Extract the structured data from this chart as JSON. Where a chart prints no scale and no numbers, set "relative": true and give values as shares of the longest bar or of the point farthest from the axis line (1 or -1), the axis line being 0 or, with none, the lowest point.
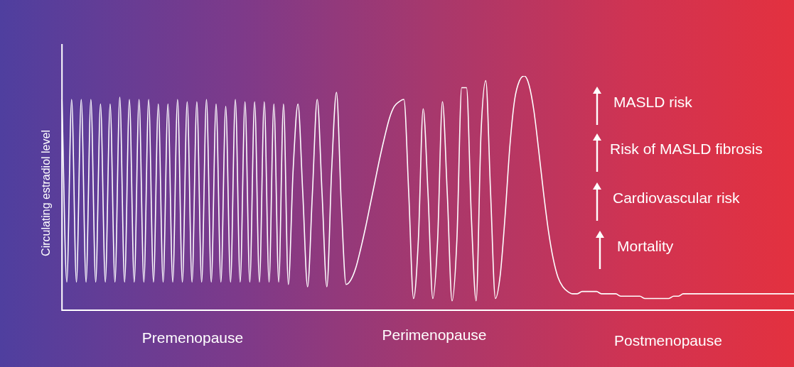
{
  "chart_data": {
    "type": "line",
    "relative": true,
    "ylabel": "Circulating estradiol level",
    "categories": [
      null,
      null,
      null,
      null,
      null,
      null,
      null,
      null,
      null,
      null,
      null,
      null,
      null,
      null,
      null,
      null,
      null,
      null,
      null,
      null,
      null,
      null,
      null,
      null,
      null,
      null,
      null,
      null,
      null,
      null,
      null,
      null,
      null,
      null,
      null,
      null,
      null,
      null,
      null,
      null,
      null,
      null,
      null,
      null,
      null,
      null,
      null,
      null,
      null,
      null,
      null,
      null,
      null,
      null,
      null,
      null,
      null,
      null,
      null,
      null,
      null,
      null,
      null,
      null,
      null,
      null,
      null,
      null,
      null,
      null,
      null,
      null,
      null,
      null,
      null,
      null,
      null,
      null,
      null,
      null,
      null,
      null,
      null,
      null,
      null,
      null,
      null,
      null,
      null,
      null,
      null,
      null,
      null,
      null,
      null,
      null,
      null,
      null,
      null,
      null,
      null,
      null,
      null,
      null,
      null,
      null,
      null,
      null,
      null,
      null,
      null,
      null,
      null,
      null,
      null,
      null,
      null,
      null,
      null,
      null,
      null,
      null,
      null,
      null,
      null,
      null,
      null,
      null,
      null,
      null,
      null,
      null,
      null,
      null,
      null,
      null,
      null,
      null,
      null,
      null,
      null,
      null,
      null,
      null,
      null,
      null,
      null,
      null,
      null,
      null,
      null,
      null,
      null
    ],
    "series": [
      {
        "color": "#ffffff",
        "values": [
          0.9,
          0.12,
          0.9,
          0.12,
          0.9,
          0.12,
          0.9,
          0.12,
          0.88,
          0.12,
          0.88,
          0.12,
          0.91,
          0.12,
          0.9,
          0.12,
          0.9,
          0.12,
          0.9,
          0.12,
          0.88,
          0.12,
          0.88,
          0.12,
          0.9,
          0.12,
          0.89,
          0.12,
          0.89,
          0.12,
          0.9,
          0.12,
          0.88,
          0.12,
          0.87,
          0.12,
          0.9,
          0.12,
          0.89,
          0.12,
          0.89,
          0.12,
          0.89,
          0.12,
          0.88,
          0.12,
          0.88,
          0.11,
          0.6,
          0.88,
          0.5,
          0.1,
          0.5,
          0.9,
          0.5,
          0.1,
          0.6,
          0.93,
          0.45,
          0.11,
          0.13,
          0.18,
          0.26,
          0.35,
          0.45,
          0.55,
          0.65,
          0.74,
          0.82,
          0.87,
          0.89,
          0.9,
          0.5,
          0.05,
          0.3,
          0.86,
          0.5,
          0.05,
          0.3,
          0.89,
          0.5,
          0.04,
          0.3,
          0.95,
          0.95,
          0.4,
          0.04,
          0.75,
          0.98,
          0.5,
          0.05,
          0.15,
          0.4,
          0.7,
          0.9,
          0.98,
          1,
          0.96,
          0.85,
          0.68,
          0.5,
          0.34,
          0.22,
          0.14,
          0.1,
          0.08,
          0.07,
          0.07,
          0.08,
          0.08,
          0.08,
          0.08,
          0.07,
          0.07,
          0.07,
          0.07,
          0.06,
          0.06,
          0.06,
          0.06,
          0.06,
          0.05,
          0.05,
          0.05,
          0.05,
          0.05,
          0.05,
          0.06,
          0.06,
          0.07,
          0.07,
          0.07,
          0.07,
          0.07,
          0.07,
          0.07,
          0.07,
          0.07,
          0.07,
          0.07,
          0.07,
          0.07,
          0.07,
          0.07,
          0.07,
          0.07,
          0.07,
          0.07,
          0.07,
          0.07,
          0.07,
          0.07,
          0.07
        ]
      }
    ],
    "annotations": [
      "Premenopause",
      "Perimenopause",
      "Postmenopause",
      "MASLD risk",
      "Risk of MASLD fibrosis",
      "Cardiovascular risk",
      "Mortality"
    ]
  }
}
